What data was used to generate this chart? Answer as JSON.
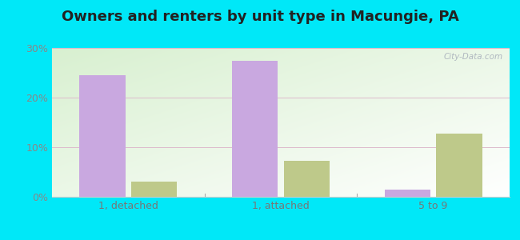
{
  "title": "Owners and renters by unit type in Macungie, PA",
  "categories": [
    "1, detached",
    "1, attached",
    "5 to 9"
  ],
  "owner_values": [
    24.5,
    27.5,
    1.5
  ],
  "renter_values": [
    3.0,
    7.2,
    12.8
  ],
  "owner_color": "#c9a8e0",
  "renter_color": "#bec98a",
  "ylim": [
    0,
    30
  ],
  "yticks": [
    0,
    10,
    20,
    30
  ],
  "ytick_labels": [
    "0%",
    "10%",
    "20%",
    "30%"
  ],
  "background_outer": "#00e8f8",
  "watermark": "City-Data.com",
  "bar_width": 0.3,
  "group_positions": [
    1,
    2,
    3
  ],
  "title_fontsize": 13
}
